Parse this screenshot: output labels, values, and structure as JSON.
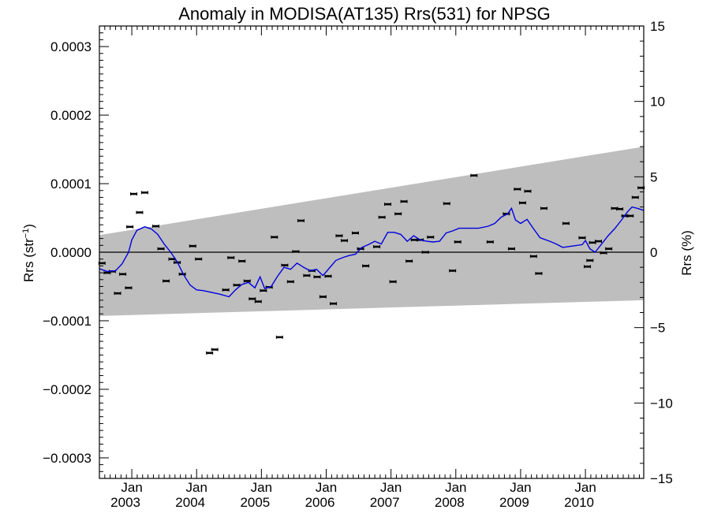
{
  "chart_data": {
    "type": "scatter",
    "title": "Anomaly in MODISA(AT135) Rrs(531) for NPSG",
    "ylabel": {
      "left_main": "Rrs (str",
      "left_sup": "−1",
      "left_close": ")",
      "right": "Rrs (%)"
    },
    "xlim": [
      2002.5,
      2010.9
    ],
    "ylim": [
      -0.00033,
      0.00033
    ],
    "ylim_right": [
      -15,
      15
    ],
    "x_ticks": [
      {
        "x": 2003.0,
        "month": "Jan",
        "year": "2003"
      },
      {
        "x": 2004.0,
        "month": "Jan",
        "year": "2004"
      },
      {
        "x": 2005.0,
        "month": "Jan",
        "year": "2005"
      },
      {
        "x": 2006.0,
        "month": "Jan",
        "year": "2006"
      },
      {
        "x": 2007.0,
        "month": "Jan",
        "year": "2007"
      },
      {
        "x": 2008.0,
        "month": "Jan",
        "year": "2008"
      },
      {
        "x": 2009.0,
        "month": "Jan",
        "year": "2009"
      },
      {
        "x": 2010.0,
        "month": "Jan",
        "year": "2010"
      }
    ],
    "y_ticks_left": [
      {
        "v": 0.0003,
        "label": "0.0003"
      },
      {
        "v": 0.0002,
        "label": "0.0002"
      },
      {
        "v": 0.0001,
        "label": "0.0001"
      },
      {
        "v": 0.0,
        "label": "0.0000"
      },
      {
        "v": -0.0001,
        "label": "−0.0001"
      },
      {
        "v": -0.0002,
        "label": "−0.0002"
      },
      {
        "v": -0.0003,
        "label": "−0.0003"
      }
    ],
    "y_ticks_right": [
      {
        "v": 15,
        "label": "15"
      },
      {
        "v": 10,
        "label": "10"
      },
      {
        "v": 5,
        "label": "5"
      },
      {
        "v": 0,
        "label": "0"
      },
      {
        "v": -5,
        "label": "−5"
      },
      {
        "v": -10,
        "label": "−10"
      },
      {
        "v": -15,
        "label": "−15"
      }
    ],
    "band": {
      "x": [
        2002.5,
        2010.9
      ],
      "upper": [
        2.5e-05,
        0.000154
      ],
      "lower": [
        -9.3e-05,
        -7e-05
      ],
      "color": "#bebebe"
    },
    "series": [
      {
        "kind": "points",
        "color": "#000000",
        "points": [
          [
            2002.54,
            -1.6e-05
          ],
          [
            2002.62,
            -3e-05
          ],
          [
            2002.7,
            -2.8e-05
          ],
          [
            2002.78,
            -6e-05
          ],
          [
            2002.86,
            -3.2e-05
          ],
          [
            2002.95,
            -5.2e-05
          ],
          [
            2002.97,
            3.7e-05
          ],
          [
            2003.03,
            8.5e-05
          ],
          [
            2003.12,
            5.8e-05
          ],
          [
            2003.2,
            8.7e-05
          ],
          [
            2003.37,
            3.8e-05
          ],
          [
            2003.45,
            5e-06
          ],
          [
            2003.53,
            -4.2e-05
          ],
          [
            2003.62,
            -1e-05
          ],
          [
            2003.7,
            -1.5e-05
          ],
          [
            2003.78,
            -3.2e-05
          ],
          [
            2003.94,
            9e-06
          ],
          [
            2004.03,
            -1e-05
          ],
          [
            2004.2,
            -0.000147
          ],
          [
            2004.28,
            -0.000142
          ],
          [
            2004.45,
            -5.5e-05
          ],
          [
            2004.53,
            -8e-06
          ],
          [
            2004.62,
            -4.8e-05
          ],
          [
            2004.7,
            -1.3e-05
          ],
          [
            2004.78,
            -4.2e-05
          ],
          [
            2004.86,
            -6.8e-05
          ],
          [
            2004.95,
            -7.2e-05
          ],
          [
            2005.03,
            -5.6e-05
          ],
          [
            2005.12,
            -5.1e-05
          ],
          [
            2005.2,
            2.2e-05
          ],
          [
            2005.28,
            -0.000124
          ],
          [
            2005.36,
            -1.9e-05
          ],
          [
            2005.45,
            -4.3e-05
          ],
          [
            2005.53,
            1e-06
          ],
          [
            2005.61,
            4.6e-05
          ],
          [
            2005.7,
            -3.4e-05
          ],
          [
            2005.78,
            -2.7e-05
          ],
          [
            2005.86,
            -3.6e-05
          ],
          [
            2005.95,
            -6.5e-05
          ],
          [
            2006.03,
            -3.5e-05
          ],
          [
            2006.11,
            -7.5e-05
          ],
          [
            2006.2,
            2.4e-05
          ],
          [
            2006.28,
            1.7e-05
          ],
          [
            2006.45,
            2.8e-05
          ],
          [
            2006.53,
            5e-06
          ],
          [
            2006.61,
            -2e-05
          ],
          [
            2006.78,
            8e-06
          ],
          [
            2006.86,
            5.1e-05
          ],
          [
            2006.95,
            7e-05
          ],
          [
            2007.03,
            -4.3e-05
          ],
          [
            2007.11,
            5.6e-05
          ],
          [
            2007.2,
            7.4e-05
          ],
          [
            2007.28,
            -1.3e-05
          ],
          [
            2007.36,
            1.8e-05
          ],
          [
            2007.45,
            1.8e-05
          ],
          [
            2007.53,
            0.0
          ],
          [
            2007.61,
            2.2e-05
          ],
          [
            2007.86,
            7.1e-05
          ],
          [
            2007.95,
            -2.7e-05
          ],
          [
            2008.03,
            1.5e-05
          ],
          [
            2008.28,
            0.000112
          ],
          [
            2008.53,
            1.5e-05
          ],
          [
            2008.78,
            5.6e-05
          ],
          [
            2008.86,
            5e-06
          ],
          [
            2008.95,
            9.2e-05
          ],
          [
            2009.03,
            7.2e-05
          ],
          [
            2009.11,
            8.9e-05
          ],
          [
            2009.2,
            -6e-06
          ],
          [
            2009.28,
            -3.1e-05
          ],
          [
            2009.36,
            6.4e-05
          ],
          [
            2009.7,
            4.2e-05
          ],
          [
            2009.95,
            2.1e-05
          ],
          [
            2010.03,
            -2.1e-05
          ],
          [
            2010.07,
            -1.2e-05
          ],
          [
            2010.11,
            1.4e-05
          ],
          [
            2010.2,
            1.6e-05
          ],
          [
            2010.28,
            -1e-06
          ],
          [
            2010.36,
            5e-06
          ],
          [
            2010.45,
            6.4e-05
          ],
          [
            2010.53,
            6.3e-05
          ],
          [
            2010.61,
            5.3e-05
          ],
          [
            2010.69,
            5.3e-05
          ],
          [
            2010.77,
            8e-05
          ],
          [
            2010.86,
            9.4e-05
          ]
        ]
      },
      {
        "kind": "line",
        "color": "#0000e0",
        "points": [
          [
            2002.5,
            -2.4e-05
          ],
          [
            2002.62,
            -2.8e-05
          ],
          [
            2002.75,
            -2.7e-05
          ],
          [
            2002.85,
            -1.7e-05
          ],
          [
            2002.95,
            0.0
          ],
          [
            2003.0,
            1.8e-05
          ],
          [
            2003.08,
            3.2e-05
          ],
          [
            2003.2,
            3.7e-05
          ],
          [
            2003.3,
            3.4e-05
          ],
          [
            2003.4,
            2.6e-05
          ],
          [
            2003.5,
            1.2e-05
          ],
          [
            2003.6,
            0.0
          ],
          [
            2003.7,
            -1.4e-05
          ],
          [
            2003.8,
            -3.3e-05
          ],
          [
            2003.9,
            -4.8e-05
          ],
          [
            2004.0,
            -5.5e-05
          ],
          [
            2004.1,
            -5.6e-05
          ],
          [
            2004.2,
            -5.8e-05
          ],
          [
            2004.35,
            -6.1e-05
          ],
          [
            2004.5,
            -6.5e-05
          ],
          [
            2004.6,
            -5.5e-05
          ],
          [
            2004.7,
            -4.7e-05
          ],
          [
            2004.8,
            -4.4e-05
          ],
          [
            2004.9,
            -5.2e-05
          ],
          [
            2004.98,
            -3.6e-05
          ],
          [
            2005.05,
            -5.3e-05
          ],
          [
            2005.15,
            -5e-05
          ],
          [
            2005.25,
            -3.5e-05
          ],
          [
            2005.35,
            -2.2e-05
          ],
          [
            2005.45,
            -2.5e-05
          ],
          [
            2005.55,
            -1.6e-05
          ],
          [
            2005.65,
            -2.2e-05
          ],
          [
            2005.75,
            -2.7e-05
          ],
          [
            2005.85,
            -2.5e-05
          ],
          [
            2005.95,
            -3.4e-05
          ],
          [
            2006.05,
            -2.3e-05
          ],
          [
            2006.15,
            -1.2e-05
          ],
          [
            2006.25,
            -8e-06
          ],
          [
            2006.35,
            -5e-06
          ],
          [
            2006.45,
            -3e-06
          ],
          [
            2006.55,
            7e-06
          ],
          [
            2006.65,
            1.1e-05
          ],
          [
            2006.75,
            1.6e-05
          ],
          [
            2006.85,
            1.2e-05
          ],
          [
            2006.95,
            2.9e-05
          ],
          [
            2007.05,
            2.9e-05
          ],
          [
            2007.15,
            2.6e-05
          ],
          [
            2007.25,
            1.6e-05
          ],
          [
            2007.35,
            2.4e-05
          ],
          [
            2007.45,
            1.8e-05
          ],
          [
            2007.55,
            1.6e-05
          ],
          [
            2007.65,
            1.5e-05
          ],
          [
            2007.75,
            1.6e-05
          ],
          [
            2007.85,
            2.8e-05
          ],
          [
            2007.95,
            3.1e-05
          ],
          [
            2008.05,
            3.5e-05
          ],
          [
            2008.2,
            3.5e-05
          ],
          [
            2008.35,
            3.5e-05
          ],
          [
            2008.5,
            3.8e-05
          ],
          [
            2008.6,
            4.2e-05
          ],
          [
            2008.7,
            5.1e-05
          ],
          [
            2008.8,
            5.6e-05
          ],
          [
            2008.86,
            6.4e-05
          ],
          [
            2008.92,
            4.7e-05
          ],
          [
            2009.0,
            4.2e-05
          ],
          [
            2009.1,
            4.8e-05
          ],
          [
            2009.2,
            3.4e-05
          ],
          [
            2009.3,
            2.1e-05
          ],
          [
            2009.45,
            1.6e-05
          ],
          [
            2009.55,
            1.2e-05
          ],
          [
            2009.65,
            7e-06
          ],
          [
            2009.8,
            9e-06
          ],
          [
            2009.95,
            1.1e-05
          ],
          [
            2010.0,
            1.7e-05
          ],
          [
            2010.07,
            5e-06
          ],
          [
            2010.15,
            0.0
          ],
          [
            2010.25,
            1.2e-05
          ],
          [
            2010.35,
            2.4e-05
          ],
          [
            2010.45,
            3.4e-05
          ],
          [
            2010.55,
            4.6e-05
          ],
          [
            2010.65,
            5.9e-05
          ],
          [
            2010.72,
            6.6e-05
          ],
          [
            2010.8,
            6.4e-05
          ],
          [
            2010.9,
            6.1e-05
          ]
        ]
      }
    ],
    "zero_line": true,
    "grid": false,
    "legend": "none"
  }
}
